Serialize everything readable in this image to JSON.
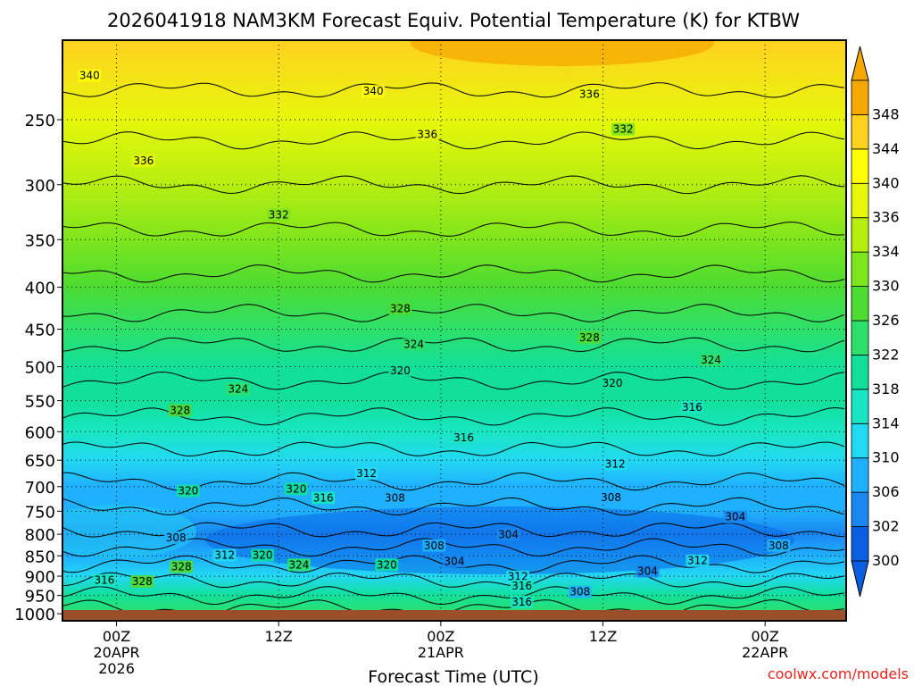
{
  "title": "2026041918 NAM3KM Forecast Equiv. Potential Temperature (K) for KTBW",
  "credit": "coolwx.com/models",
  "chart_data": {
    "type": "heatmap",
    "title": "2026041918 NAM3KM Forecast Equiv. Potential Temperature (K) for KTBW",
    "xlabel": "Forecast Time (UTC)",
    "ylabel": "",
    "x_range_hours": [
      -4,
      54
    ],
    "y_log_scale": true,
    "ylim": [
      1020,
      200
    ],
    "grid": true,
    "x_ticks": [
      {
        "hour": 0,
        "lines": [
          "00Z",
          "20APR",
          "2026"
        ]
      },
      {
        "hour": 12,
        "lines": [
          "12Z"
        ]
      },
      {
        "hour": 24,
        "lines": [
          "00Z",
          "21APR"
        ]
      },
      {
        "hour": 36,
        "lines": [
          "12Z"
        ]
      },
      {
        "hour": 48,
        "lines": [
          "00Z",
          "22APR"
        ]
      }
    ],
    "y_ticks": [
      250,
      300,
      350,
      400,
      450,
      500,
      550,
      600,
      650,
      700,
      750,
      800,
      850,
      900,
      950,
      1000
    ],
    "colorbar": {
      "levels": [
        300,
        302,
        306,
        310,
        314,
        318,
        322,
        326,
        330,
        334,
        336,
        340,
        344,
        348
      ],
      "colors": [
        "#0a5fe0",
        "#1a86f0",
        "#1fb0ff",
        "#22d9f2",
        "#18e6c2",
        "#12e09a",
        "#2ee06a",
        "#4cdc32",
        "#7ee61c",
        "#b6ee10",
        "#e6f70a",
        "#ffff00",
        "#ffd21f",
        "#f5a800"
      ]
    },
    "field_profile": [
      {
        "p": 200,
        "theta_e": 345
      },
      {
        "p": 250,
        "theta_e": 338
      },
      {
        "p": 300,
        "theta_e": 334
      },
      {
        "p": 350,
        "theta_e": 331
      },
      {
        "p": 400,
        "theta_e": 329
      },
      {
        "p": 450,
        "theta_e": 325
      },
      {
        "p": 500,
        "theta_e": 321
      },
      {
        "p": 550,
        "theta_e": 318
      },
      {
        "p": 600,
        "theta_e": 315
      },
      {
        "p": 650,
        "theta_e": 312
      },
      {
        "p": 700,
        "theta_e": 309
      },
      {
        "p": 750,
        "theta_e": 306
      },
      {
        "p": 800,
        "theta_e": 303
      },
      {
        "p": 850,
        "theta_e": 306
      },
      {
        "p": 900,
        "theta_e": 312
      },
      {
        "p": 950,
        "theta_e": 318
      },
      {
        "p": 1000,
        "theta_e": 322
      }
    ],
    "contour_labels": [
      {
        "t": -2,
        "p": 222,
        "text": "340"
      },
      {
        "t": 19,
        "p": 232,
        "text": "340"
      },
      {
        "t": 35,
        "p": 234,
        "text": "336"
      },
      {
        "t": 23,
        "p": 262,
        "text": "336"
      },
      {
        "t": 2,
        "p": 282,
        "text": "336"
      },
      {
        "t": 12,
        "p": 328,
        "text": "332"
      },
      {
        "t": 37.5,
        "p": 258,
        "text": "332"
      },
      {
        "t": 21,
        "p": 427,
        "text": "328"
      },
      {
        "t": 35,
        "p": 463,
        "text": "328"
      },
      {
        "t": 22,
        "p": 472,
        "text": "324"
      },
      {
        "t": 9,
        "p": 535,
        "text": "324"
      },
      {
        "t": 44,
        "p": 493,
        "text": "324"
      },
      {
        "t": 21,
        "p": 508,
        "text": "320"
      },
      {
        "t": 4.7,
        "p": 568,
        "text": "328"
      },
      {
        "t": 36.7,
        "p": 526,
        "text": "320"
      },
      {
        "t": 42.6,
        "p": 563,
        "text": "316"
      },
      {
        "t": 25.7,
        "p": 613,
        "text": "316"
      },
      {
        "t": 36.9,
        "p": 660,
        "text": "312"
      },
      {
        "t": 18.5,
        "p": 678,
        "text": "312"
      },
      {
        "t": 13.3,
        "p": 708,
        "text": "320"
      },
      {
        "t": 15.3,
        "p": 726,
        "text": "316"
      },
      {
        "t": 5.3,
        "p": 712,
        "text": "320"
      },
      {
        "t": 20.6,
        "p": 726,
        "text": "308"
      },
      {
        "t": 36.6,
        "p": 725,
        "text": "308"
      },
      {
        "t": 45.8,
        "p": 766,
        "text": "304"
      },
      {
        "t": 4.4,
        "p": 812,
        "text": "308"
      },
      {
        "t": 29,
        "p": 805,
        "text": "304"
      },
      {
        "t": 23.5,
        "p": 830,
        "text": "308"
      },
      {
        "t": 49,
        "p": 830,
        "text": "308"
      },
      {
        "t": 8,
        "p": 853,
        "text": "312"
      },
      {
        "t": 10.8,
        "p": 853,
        "text": "320"
      },
      {
        "t": 4.8,
        "p": 881,
        "text": "328"
      },
      {
        "t": 13.5,
        "p": 876,
        "text": "324"
      },
      {
        "t": 20,
        "p": 876,
        "text": "320"
      },
      {
        "t": 25,
        "p": 868,
        "text": "304"
      },
      {
        "t": 43,
        "p": 866,
        "text": "312"
      },
      {
        "t": 39.3,
        "p": 892,
        "text": "304"
      },
      {
        "t": 29.7,
        "p": 906,
        "text": "312"
      },
      {
        "t": -0.9,
        "p": 915,
        "text": "316"
      },
      {
        "t": 1.9,
        "p": 918,
        "text": "328"
      },
      {
        "t": 30,
        "p": 930,
        "text": "316"
      },
      {
        "t": 34.3,
        "p": 945,
        "text": "308"
      },
      {
        "t": 30,
        "p": 972,
        "text": "316"
      }
    ]
  }
}
